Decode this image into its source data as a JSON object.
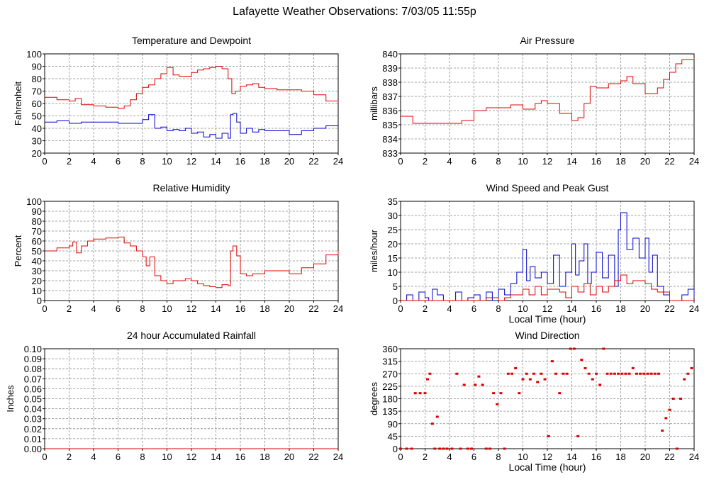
{
  "page": {
    "title": "Lafayette Weather Observations: 7/03/05 11:55p"
  },
  "chart_data": [
    {
      "id": "temp",
      "type": "line",
      "title": "Temperature and Dewpoint",
      "ylabel": "Fahrenheit",
      "xlabel": "",
      "xlim": [
        0,
        24
      ],
      "ylim": [
        20,
        100
      ],
      "xticks": [
        0,
        2,
        4,
        6,
        8,
        10,
        12,
        14,
        16,
        18,
        20,
        22,
        24
      ],
      "yticks": [
        20,
        30,
        40,
        50,
        60,
        70,
        80,
        90,
        100
      ],
      "grid": true,
      "series": [
        {
          "color": "#dd0000",
          "x": [
            0,
            1,
            2,
            2.5,
            3,
            4,
            5,
            6,
            6.5,
            7,
            7.5,
            8,
            8.5,
            9,
            9.5,
            10,
            10.5,
            11,
            11.5,
            12,
            12.5,
            13,
            13.5,
            14,
            14.5,
            15,
            15.3,
            15.6,
            16,
            16.5,
            17,
            17.5,
            18,
            19,
            20,
            21,
            22,
            23,
            24
          ],
          "y": [
            65,
            63,
            62,
            64,
            59,
            58,
            57,
            56,
            58,
            63,
            68,
            73,
            75,
            80,
            84,
            89,
            83,
            82,
            82,
            85,
            87,
            88,
            89,
            90,
            88,
            80,
            68,
            70,
            74,
            75,
            76,
            73,
            72,
            71,
            71,
            70,
            67,
            62,
            61
          ]
        },
        {
          "color": "#0000cc",
          "x": [
            0,
            1,
            2,
            3,
            4,
            5,
            6,
            7,
            8,
            8.5,
            9,
            9.5,
            10,
            10.5,
            11,
            11.5,
            12,
            12.5,
            13,
            13.5,
            14,
            14.5,
            15,
            15.2,
            15.4,
            15.7,
            16,
            16.5,
            17,
            17.5,
            18,
            19,
            20,
            21,
            22,
            23,
            24
          ],
          "y": [
            45,
            46,
            44,
            45,
            45,
            45,
            44,
            44,
            47,
            51,
            40,
            41,
            38,
            39,
            38,
            40,
            36,
            37,
            33,
            35,
            32,
            36,
            32,
            51,
            52,
            45,
            36,
            40,
            37,
            39,
            38,
            38,
            35,
            38,
            40,
            42,
            42
          ]
        }
      ]
    },
    {
      "id": "pressure",
      "type": "line",
      "title": "Air Pressure",
      "ylabel": "millibars",
      "xlabel": "",
      "xlim": [
        0,
        24
      ],
      "ylim": [
        833,
        840
      ],
      "xticks": [
        0,
        2,
        4,
        6,
        8,
        10,
        12,
        14,
        16,
        18,
        20,
        22,
        24
      ],
      "yticks": [
        833,
        834,
        835,
        836,
        837,
        838,
        839,
        840
      ],
      "grid": true,
      "series": [
        {
          "color": "#dd0000",
          "x": [
            0,
            1,
            2,
            3,
            4,
            5,
            6,
            7,
            8,
            9,
            10,
            11,
            11.5,
            12,
            13,
            14,
            14.5,
            15,
            15.5,
            16,
            17,
            18,
            18.5,
            19,
            20,
            21,
            21.5,
            22,
            22.5,
            23,
            24
          ],
          "y": [
            835.6,
            835.1,
            835.1,
            835.1,
            835.1,
            835.3,
            836.0,
            836.2,
            836.2,
            836.4,
            836.1,
            836.5,
            836.7,
            836.5,
            835.8,
            835.3,
            835.5,
            836.5,
            837.7,
            837.6,
            837.9,
            838.1,
            838.4,
            837.9,
            837.2,
            837.6,
            838.2,
            838.7,
            839.3,
            839.6,
            839.7
          ]
        }
      ]
    },
    {
      "id": "humidity",
      "type": "line",
      "title": "Relative Humidity",
      "ylabel": "Percent",
      "xlabel": "",
      "xlim": [
        0,
        24
      ],
      "ylim": [
        0,
        100
      ],
      "xticks": [
        0,
        2,
        4,
        6,
        8,
        10,
        12,
        14,
        16,
        18,
        20,
        22,
        24
      ],
      "yticks": [
        0,
        10,
        20,
        30,
        40,
        50,
        60,
        70,
        80,
        90,
        100
      ],
      "grid": true,
      "series": [
        {
          "color": "#dd0000",
          "x": [
            0,
            1,
            2,
            2.3,
            2.6,
            3,
            3.5,
            4,
            5,
            6,
            6.5,
            7,
            7.5,
            8,
            8.3,
            8.6,
            9,
            9.5,
            10,
            10.5,
            11,
            11.5,
            12,
            12.5,
            13,
            13.5,
            14,
            14.5,
            15,
            15.2,
            15.4,
            15.7,
            16,
            16.5,
            17,
            18,
            19,
            20,
            21,
            22,
            23,
            24
          ],
          "y": [
            50,
            53,
            55,
            59,
            48,
            55,
            60,
            62,
            63,
            64,
            58,
            55,
            50,
            44,
            35,
            44,
            25,
            20,
            17,
            20,
            20,
            22,
            20,
            17,
            15,
            14,
            13,
            16,
            15,
            50,
            55,
            45,
            27,
            25,
            27,
            30,
            30,
            27,
            33,
            37,
            46,
            50
          ]
        }
      ]
    },
    {
      "id": "wind",
      "type": "line",
      "title": "Wind Speed and Peak Gust",
      "ylabel": "miles/hour",
      "xlabel": "Local Time (hour)",
      "xlim": [
        0,
        24
      ],
      "ylim": [
        0,
        35
      ],
      "xticks": [
        0,
        2,
        4,
        6,
        8,
        10,
        12,
        14,
        16,
        18,
        20,
        22,
        24
      ],
      "yticks": [
        0,
        5,
        10,
        15,
        20,
        25,
        30,
        35
      ],
      "grid": true,
      "series": [
        {
          "color": "#0000cc",
          "x": [
            0,
            0.5,
            1,
            1.5,
            2,
            2.3,
            2.6,
            3,
            3.5,
            4,
            4.5,
            5,
            5.5,
            6,
            6.5,
            7,
            7.5,
            8,
            8.5,
            9,
            9.5,
            10,
            10.3,
            10.6,
            11,
            11.5,
            12,
            12.5,
            13,
            13.5,
            14,
            14.3,
            14.6,
            15,
            15.3,
            15.6,
            16,
            16.5,
            17,
            17.5,
            17.8,
            18,
            18.5,
            19,
            19.5,
            20,
            20.3,
            20.6,
            21,
            21.5,
            22,
            22.5,
            23,
            23.5,
            24
          ],
          "y": [
            0,
            2,
            0,
            3,
            1,
            0,
            4,
            2,
            0,
            0,
            3,
            0,
            1,
            2,
            0,
            3,
            0,
            4,
            2,
            6,
            10,
            18,
            7,
            12,
            8,
            10,
            6,
            16,
            5,
            10,
            20,
            9,
            14,
            20,
            6,
            10,
            17,
            8,
            16,
            5,
            25,
            31,
            18,
            22,
            15,
            22,
            10,
            16,
            5,
            2,
            0,
            0,
            2,
            4,
            1
          ]
        },
        {
          "color": "#dd0000",
          "x": [
            0,
            2,
            4,
            6,
            7,
            8,
            8.5,
            9,
            10,
            10.5,
            11,
            11.5,
            12,
            13,
            13.5,
            14,
            14.5,
            15,
            15.5,
            16,
            16.5,
            17,
            17.5,
            18,
            18.5,
            19,
            20,
            20.5,
            21,
            22,
            24
          ],
          "y": [
            0,
            0,
            0,
            0,
            1,
            0,
            1,
            2,
            4,
            2,
            5,
            2,
            4,
            3,
            1,
            5,
            3,
            6,
            2,
            5,
            3,
            5,
            7,
            9,
            6,
            7,
            6,
            4,
            3,
            0,
            0
          ]
        }
      ]
    },
    {
      "id": "rain",
      "type": "line",
      "title": "24 hour Accumulated Rainfall",
      "ylabel": "Inches",
      "xlabel": "",
      "xlim": [
        0,
        24
      ],
      "ylim": [
        0,
        0.1
      ],
      "xticks": [
        0,
        2,
        4,
        6,
        8,
        10,
        12,
        14,
        16,
        18,
        20,
        22,
        24
      ],
      "yticks": [
        0,
        0.01,
        0.02,
        0.03,
        0.04,
        0.05,
        0.06,
        0.07,
        0.08,
        0.09,
        0.1
      ],
      "ytickLabels": [
        "0.00",
        "0.01",
        "0.02",
        "0.03",
        "0.04",
        "0.05",
        "0.06",
        "0.07",
        "0.08",
        "0.09",
        "0.10"
      ],
      "grid": true,
      "series": [
        {
          "color": "#dd0000",
          "x": [
            0,
            24
          ],
          "y": [
            0,
            0
          ]
        }
      ]
    },
    {
      "id": "direction",
      "type": "scatter",
      "title": "Wind Direction",
      "ylabel": "degrees",
      "xlabel": "Local Time (hour)",
      "xlim": [
        0,
        24
      ],
      "ylim": [
        0,
        360
      ],
      "xticks": [
        0,
        2,
        4,
        6,
        8,
        10,
        12,
        14,
        16,
        18,
        20,
        22,
        24
      ],
      "yticks": [
        0,
        45,
        90,
        135,
        180,
        225,
        270,
        315,
        360
      ],
      "grid": true,
      "series": [
        {
          "color": "#dd0000",
          "x": [
            0,
            0.5,
            0.9,
            1.2,
            1.6,
            2.0,
            2.2,
            2.4,
            2.6,
            2.8,
            3.0,
            3.2,
            3.5,
            3.8,
            4.2,
            4.6,
            4.9,
            5.2,
            5.5,
            5.8,
            6.1,
            6.4,
            6.7,
            7.0,
            7.3,
            7.6,
            7.9,
            8.2,
            8.5,
            8.8,
            9.1,
            9.4,
            9.7,
            10.0,
            10.3,
            10.6,
            10.9,
            11.2,
            11.5,
            11.8,
            12.1,
            12.4,
            12.7,
            13.0,
            13.3,
            13.6,
            13.9,
            14.2,
            14.5,
            14.8,
            15.1,
            15.4,
            15.7,
            16.0,
            16.3,
            16.6,
            16.9,
            17.2,
            17.5,
            17.8,
            18.1,
            18.4,
            18.7,
            19.0,
            19.3,
            19.6,
            19.9,
            20.2,
            20.5,
            20.8,
            21.1,
            21.4,
            21.7,
            22.0,
            22.3,
            22.6,
            22.9,
            23.2,
            23.5,
            23.8
          ],
          "y": [
            0,
            0,
            0,
            200,
            200,
            200,
            250,
            270,
            90,
            0,
            115,
            0,
            0,
            0,
            0,
            270,
            0,
            230,
            0,
            0,
            230,
            260,
            230,
            0,
            0,
            200,
            160,
            200,
            0,
            270,
            270,
            290,
            200,
            250,
            270,
            250,
            270,
            240,
            270,
            250,
            45,
            315,
            270,
            200,
            270,
            270,
            360,
            360,
            45,
            320,
            290,
            270,
            250,
            270,
            230,
            360,
            270,
            270,
            270,
            270,
            270,
            270,
            270,
            290,
            270,
            270,
            270,
            270,
            270,
            270,
            270,
            65,
            110,
            140,
            180,
            0,
            180,
            250,
            270,
            290
          ]
        }
      ]
    }
  ]
}
